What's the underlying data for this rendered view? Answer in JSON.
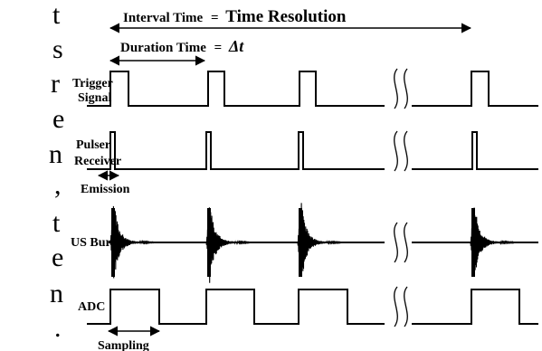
{
  "header": {
    "interval_prefix": "Interval Time",
    "interval_eq": "=",
    "interval_value": "Time Resolution",
    "duration_prefix": "Duration Time",
    "duration_eq": "=",
    "duration_value": "Δt"
  },
  "rows": {
    "trigger_line1": "Trigger",
    "trigger_line2": "Signal",
    "pulser_line1": "Pulser",
    "pulser_line2": "Receiver",
    "us_burst": "US Burst",
    "adc": "ADC"
  },
  "annotations": {
    "emission": "Emission",
    "sampling": "Sampling"
  },
  "left_fragment": [
    "t",
    "s",
    "r",
    "e",
    "n",
    ",",
    "t",
    "e",
    "n",
    "."
  ]
}
